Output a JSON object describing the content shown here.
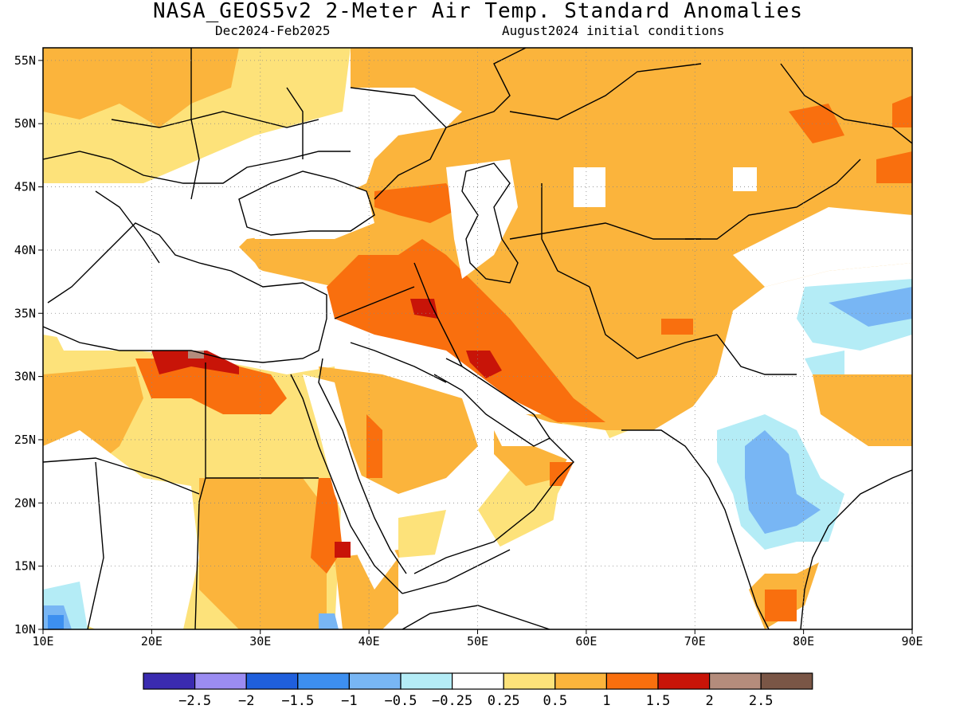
{
  "header": {
    "title": "NASA_GEOS5v2 2-Meter Air Temp. Standard Anomalies",
    "period": "Dec2024-Feb2025",
    "init": "August2024 initial conditions"
  },
  "map": {
    "lon_range": [
      10,
      90
    ],
    "lat_range": [
      10,
      56
    ],
    "lon_ticks": [
      "10E",
      "20E",
      "30E",
      "40E",
      "50E",
      "60E",
      "70E",
      "80E",
      "90E"
    ],
    "lat_ticks": [
      "10N",
      "15N",
      "20N",
      "25N",
      "30N",
      "35N",
      "40N",
      "45N",
      "50N",
      "55N"
    ],
    "grid": "dotted"
  },
  "colorbar": {
    "colors": [
      "#3a2bb0",
      "#9b8cf2",
      "#1f5fdc",
      "#3d8ff0",
      "#78b6f4",
      "#b4ecf6",
      "#ffffff",
      "#fde27a",
      "#fbb43c",
      "#f96f0e",
      "#c81408",
      "#b48c7c",
      "#7a5646"
    ],
    "labels": [
      "-2.5",
      "-2",
      "-1.5",
      "-1",
      "-0.5",
      "-0.25",
      "0.25",
      "0.5",
      "1",
      "1.5",
      "2",
      "2.5"
    ]
  }
}
